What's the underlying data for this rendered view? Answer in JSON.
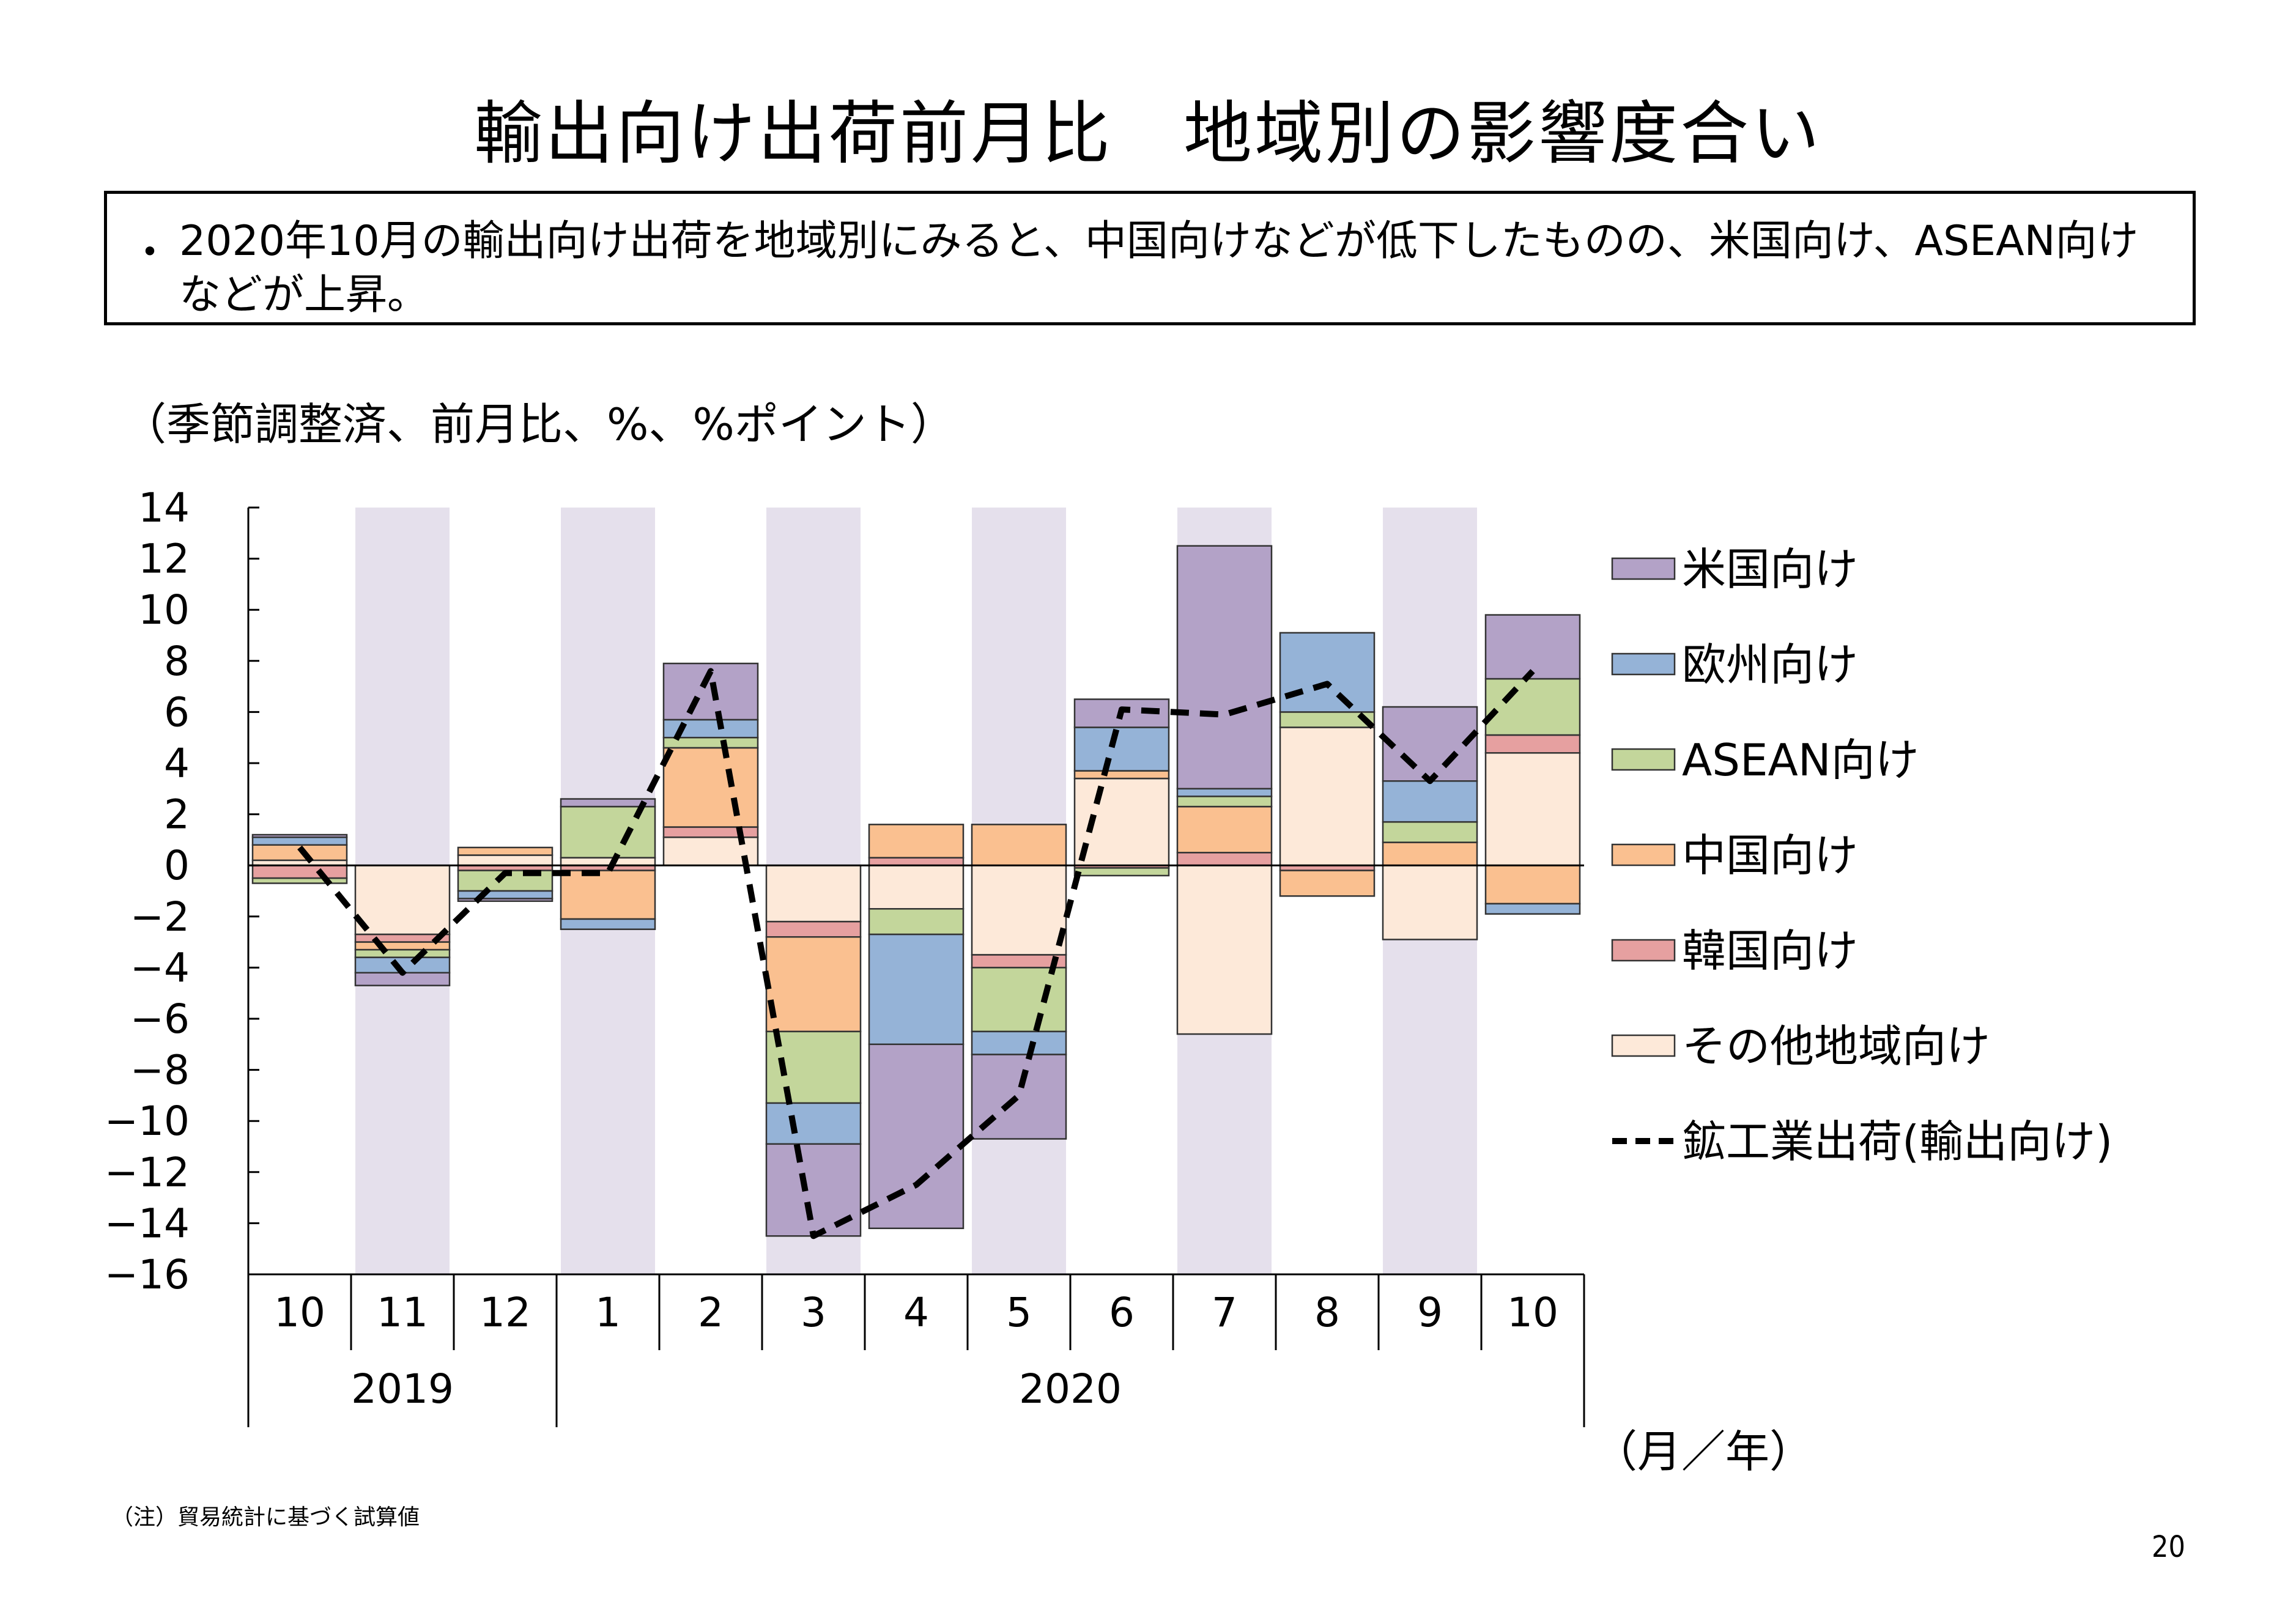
{
  "page": {
    "title": "輸出向け出荷前月比　地域別の影響度合い",
    "summary_bullet": "・",
    "summary": "2020年10月の輸出向け出荷を地域別にみると、中国向けなどが低下したものの、米国向け、ASEAN向けなどが上昇。",
    "unit_note": "（季節調整済、前月比、%、%ポイント）",
    "axis_unit": "（月／年）",
    "footnote": "（注）貿易統計に基づく試算値",
    "page_number": "20"
  },
  "colors": {
    "us": "#b3a2c7",
    "europe": "#95b3d7",
    "asean": "#c3d69b",
    "china": "#fac090",
    "korea": "#e6a0a0",
    "other": "#fde9d9",
    "shade": "#e5e0ec",
    "line": "#000000"
  },
  "chart_data": {
    "type": "bar",
    "stacked": true,
    "months": [
      "10",
      "11",
      "12",
      "1",
      "2",
      "3",
      "4",
      "5",
      "6",
      "7",
      "8",
      "9",
      "10"
    ],
    "years": [
      {
        "label": "2019",
        "start": 0,
        "end": 2
      },
      {
        "label": "2020",
        "start": 3,
        "end": 12
      }
    ],
    "ylim": [
      -16,
      14
    ],
    "yticks": [
      14,
      12,
      10,
      8,
      6,
      4,
      2,
      0,
      -2,
      -4,
      -6,
      -8,
      -10,
      -12,
      -14,
      -16
    ],
    "series": [
      {
        "name": "その他地域向け",
        "key": "other",
        "values": [
          0.2,
          -2.7,
          0.4,
          0.3,
          1.1,
          -2.2,
          -1.7,
          -3.5,
          3.4,
          -6.6,
          5.4,
          -2.9,
          4.4
        ]
      },
      {
        "name": "韓国向け",
        "key": "korea",
        "values": [
          -0.5,
          -0.3,
          -0.2,
          -0.2,
          0.4,
          -0.6,
          0.3,
          -0.5,
          -0.1,
          0.5,
          -0.2,
          0.0,
          0.7
        ]
      },
      {
        "name": "中国向け",
        "key": "china",
        "values": [
          0.6,
          -0.3,
          0.3,
          -1.9,
          3.1,
          -3.7,
          1.3,
          1.6,
          0.3,
          1.8,
          -1.0,
          0.9,
          -1.5
        ]
      },
      {
        "name": "ASEAN向け",
        "key": "asean",
        "values": [
          -0.2,
          -0.3,
          -0.8,
          2.0,
          0.4,
          -2.8,
          -1.0,
          -2.5,
          -0.3,
          0.4,
          0.6,
          0.8,
          2.2
        ]
      },
      {
        "name": "欧州向け",
        "key": "europe",
        "values": [
          0.3,
          -0.6,
          -0.3,
          -0.4,
          0.7,
          -1.6,
          -4.3,
          -0.9,
          1.7,
          0.3,
          3.1,
          1.6,
          -0.4
        ]
      },
      {
        "name": "米国向け",
        "key": "us",
        "values": [
          0.1,
          -0.5,
          -0.1,
          0.3,
          2.2,
          -3.6,
          -7.2,
          -3.3,
          1.1,
          9.5,
          0.0,
          2.9,
          2.5
        ]
      }
    ],
    "line": {
      "name": "鉱工業出荷(輸出向け)",
      "values": [
        0.7,
        -4.2,
        -0.3,
        -0.3,
        7.6,
        -14.5,
        -12.5,
        -9.0,
        6.1,
        5.9,
        7.1,
        3.3,
        7.6
      ]
    },
    "legend_order": [
      "us",
      "europe",
      "asean",
      "china",
      "korea",
      "other",
      "line"
    ],
    "legend_labels": {
      "us": "米国向け",
      "europe": "欧州向け",
      "asean": "ASEAN向け",
      "china": "中国向け",
      "korea": "韓国向け",
      "other": "その他地域向け",
      "line": "鉱工業出荷(輸出向け)"
    },
    "shaded_months": [
      1,
      3,
      5,
      7,
      9,
      11
    ],
    "legend_position": "right"
  }
}
